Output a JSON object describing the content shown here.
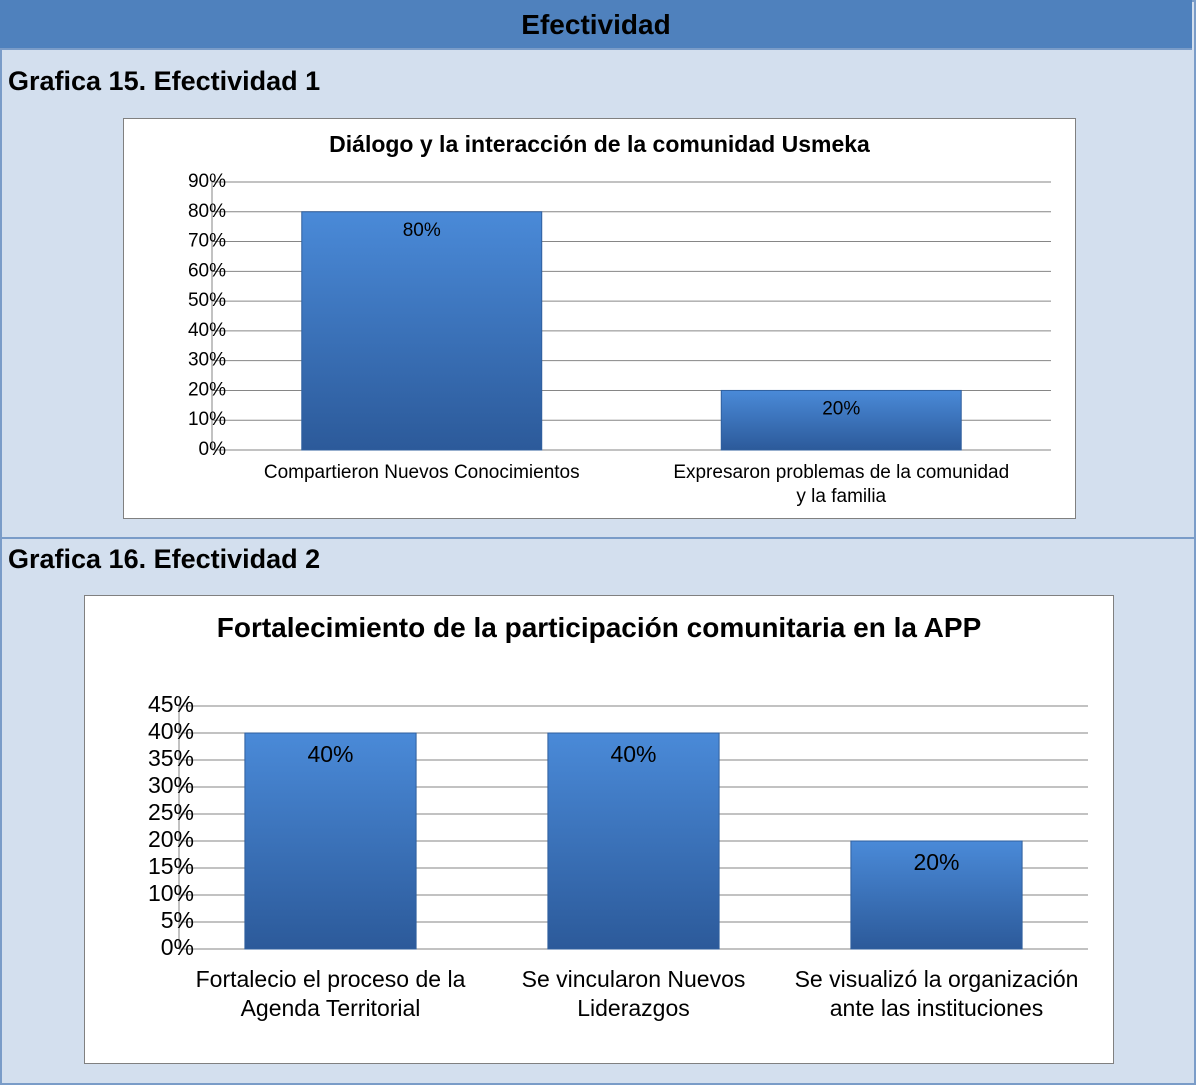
{
  "title": "Efectividad",
  "captions": [
    "Grafica 15. Efectividad 1",
    "Grafica 16. Efectividad 2"
  ],
  "chart_data": [
    {
      "type": "bar",
      "title": "Diálogo y la interacción de la comunidad Usmeka",
      "categories": [
        "Compartieron Nuevos Conocimientos",
        "Expresaron problemas de la comunidad y la familia"
      ],
      "values": [
        80,
        20
      ],
      "value_labels": [
        "80%",
        "20%"
      ],
      "color": "#3b74c0",
      "ylim": [
        0,
        90
      ],
      "yticks": [
        {
          "value": 0,
          "label": "0%"
        },
        {
          "value": 10,
          "label": "10%"
        },
        {
          "value": 20,
          "label": "20%"
        },
        {
          "value": 30,
          "label": "30%"
        },
        {
          "value": 40,
          "label": "40%"
        },
        {
          "value": 50,
          "label": "50%"
        },
        {
          "value": 60,
          "label": "60%"
        },
        {
          "value": 70,
          "label": "70%"
        },
        {
          "value": 80,
          "label": "80%"
        },
        {
          "value": 90,
          "label": "90%"
        }
      ],
      "grid": true
    },
    {
      "type": "bar",
      "title": "Fortalecimiento de la participación comunitaria en la APP",
      "categories": [
        "Fortalecio el proceso de la Agenda Territorial",
        "Se vincularon Nuevos Liderazgos",
        "Se visualizó la organización ante las instituciones"
      ],
      "values": [
        40,
        40,
        20
      ],
      "value_labels": [
        "40%",
        "40%",
        "20%"
      ],
      "color": "#3b74c0",
      "ylim": [
        0,
        45
      ],
      "yticks": [
        {
          "value": 0,
          "label": "0%"
        },
        {
          "value": 5,
          "label": "5%"
        },
        {
          "value": 10,
          "label": "10%"
        },
        {
          "value": 15,
          "label": "15%"
        },
        {
          "value": 20,
          "label": "20%"
        },
        {
          "value": 25,
          "label": "25%"
        },
        {
          "value": 30,
          "label": "30%"
        },
        {
          "value": 35,
          "label": "35%"
        },
        {
          "value": 40,
          "label": "40%"
        },
        {
          "value": 45,
          "label": "45%"
        }
      ],
      "grid": true
    }
  ]
}
